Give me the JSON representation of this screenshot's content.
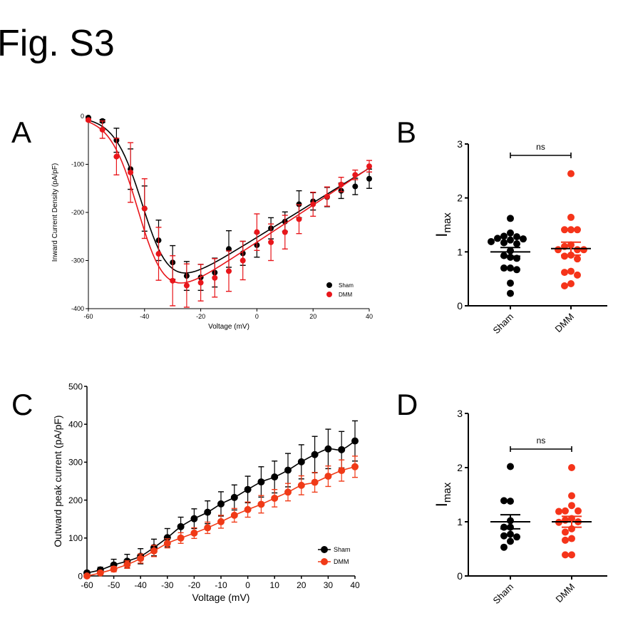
{
  "figure_title": "Fig. S3",
  "colors": {
    "sham": "#000000",
    "dmm_a": "#e8161b",
    "dmm_c": "#f03a17",
    "dmm_dots": "#f5341a"
  },
  "chart_data": [
    {
      "panel": "A",
      "type": "line",
      "xlabel": "Voltage (mV)",
      "ylabel": "Inward Current Density (pA/pF)",
      "xlim": [
        -60,
        40
      ],
      "ylim": [
        -400,
        0
      ],
      "xticks": [
        -60,
        -40,
        -20,
        0,
        20,
        40
      ],
      "yticks": [
        0,
        -100,
        -200,
        -300,
        -400
      ],
      "legend": "bottom-right",
      "x": [
        -60,
        -55,
        -50,
        -45,
        -40,
        -35,
        -30,
        -25,
        -20,
        -15,
        -10,
        -5,
        0,
        5,
        10,
        15,
        20,
        25,
        30,
        35,
        40
      ],
      "series": [
        {
          "name": "Sham",
          "color": "#000000",
          "values": [
            -3,
            -10,
            -50,
            -110,
            -192,
            -258,
            -304,
            -332,
            -335,
            -325,
            -276,
            -285,
            -268,
            -233,
            -219,
            -183,
            -177,
            -168,
            -155,
            -146,
            -130
          ],
          "error": [
            0,
            3,
            25,
            42,
            47,
            42,
            35,
            30,
            27,
            30,
            38,
            25,
            25,
            22,
            20,
            28,
            18,
            20,
            16,
            17,
            20
          ]
        },
        {
          "name": "DMM",
          "color": "#e8161b",
          "values": [
            -8,
            -28,
            -84,
            -117,
            -192,
            -286,
            -342,
            -352,
            -346,
            -336,
            -322,
            -300,
            -241,
            -262,
            -241,
            -214,
            -183,
            -167,
            -142,
            -122,
            -104
          ],
          "error": [
            2,
            18,
            38,
            62,
            62,
            55,
            52,
            45,
            38,
            40,
            42,
            40,
            38,
            38,
            35,
            30,
            25,
            20,
            15,
            10,
            12
          ]
        }
      ]
    },
    {
      "panel": "B",
      "type": "scatter",
      "ylabel": "I",
      "ylabel_sub": "max",
      "ylim": [
        0,
        3
      ],
      "yticks": [
        0,
        1,
        2,
        3
      ],
      "categories": [
        "Sham",
        "DMM"
      ],
      "significance": "ns",
      "series": [
        {
          "name": "Sham",
          "color": "#000000",
          "mean": 1.0,
          "sem": 0.08,
          "values": [
            1.62,
            1.35,
            1.29,
            1.28,
            1.25,
            1.24,
            1.22,
            1.19,
            1.17,
            1.15,
            1.02,
            0.93,
            0.9,
            0.88,
            0.7,
            0.7,
            0.67,
            0.42,
            0.23
          ]
        },
        {
          "name": "DMM",
          "color": "#f5341a",
          "mean": 1.06,
          "sem": 0.12,
          "values": [
            2.45,
            1.64,
            1.41,
            1.41,
            1.41,
            1.13,
            1.1,
            1.04,
            1.04,
            1.04,
            0.94,
            0.92,
            0.87,
            0.64,
            0.62,
            0.57,
            0.41,
            0.37
          ]
        }
      ]
    },
    {
      "panel": "C",
      "type": "line",
      "xlabel": "Voltage (mV)",
      "ylabel": "Outward peak current (pA/pF)",
      "xlim": [
        -60,
        40
      ],
      "ylim": [
        0,
        500
      ],
      "xticks": [
        -60,
        -50,
        -40,
        -30,
        -20,
        -10,
        0,
        10,
        20,
        30,
        40
      ],
      "yticks": [
        0,
        100,
        200,
        300,
        400,
        500
      ],
      "legend": "bottom-right",
      "x": [
        -60,
        -55,
        -50,
        -45,
        -40,
        -35,
        -30,
        -25,
        -20,
        -15,
        -10,
        -5,
        0,
        5,
        10,
        15,
        20,
        25,
        30,
        35,
        40
      ],
      "series": [
        {
          "name": "Sham",
          "color": "#000000",
          "values": [
            8,
            16,
            29,
            39,
            52,
            75,
            101,
            130,
            151,
            168,
            190,
            207,
            228,
            248,
            261,
            279,
            301,
            320,
            335,
            333,
            356
          ],
          "error": [
            5,
            7,
            15,
            18,
            20,
            22,
            24,
            25,
            26,
            30,
            32,
            33,
            35,
            40,
            42,
            44,
            45,
            48,
            52,
            48,
            53
          ]
        },
        {
          "name": "DMM",
          "color": "#f03a17",
          "values": [
            0,
            8,
            18,
            30,
            46,
            66,
            86,
            100,
            113,
            127,
            143,
            160,
            175,
            189,
            205,
            221,
            239,
            247,
            263,
            278,
            288
          ],
          "error": [
            3,
            5,
            7,
            10,
            12,
            15,
            12,
            14,
            14,
            15,
            17,
            18,
            20,
            23,
            23,
            23,
            25,
            26,
            27,
            28,
            28
          ]
        }
      ]
    },
    {
      "panel": "D",
      "type": "scatter",
      "ylabel": "I",
      "ylabel_sub": "max",
      "ylim": [
        0,
        3
      ],
      "yticks": [
        0,
        1,
        2,
        3
      ],
      "categories": [
        "Sham",
        "DMM"
      ],
      "significance": "ns",
      "series": [
        {
          "name": "Sham",
          "color": "#000000",
          "mean": 1.0,
          "sem": 0.13,
          "values": [
            2.02,
            1.38,
            1.39,
            1.02,
            0.9,
            0.9,
            0.77,
            0.74,
            0.72,
            0.64,
            0.53
          ]
        },
        {
          "name": "DMM",
          "color": "#f5341a",
          "mean": 1.0,
          "sem": 0.1,
          "values": [
            2.0,
            1.48,
            1.3,
            1.2,
            1.2,
            1.19,
            1.06,
            1.03,
            1.0,
            0.99,
            0.87,
            0.81,
            0.69,
            0.66,
            0.39,
            0.39
          ]
        }
      ]
    }
  ]
}
